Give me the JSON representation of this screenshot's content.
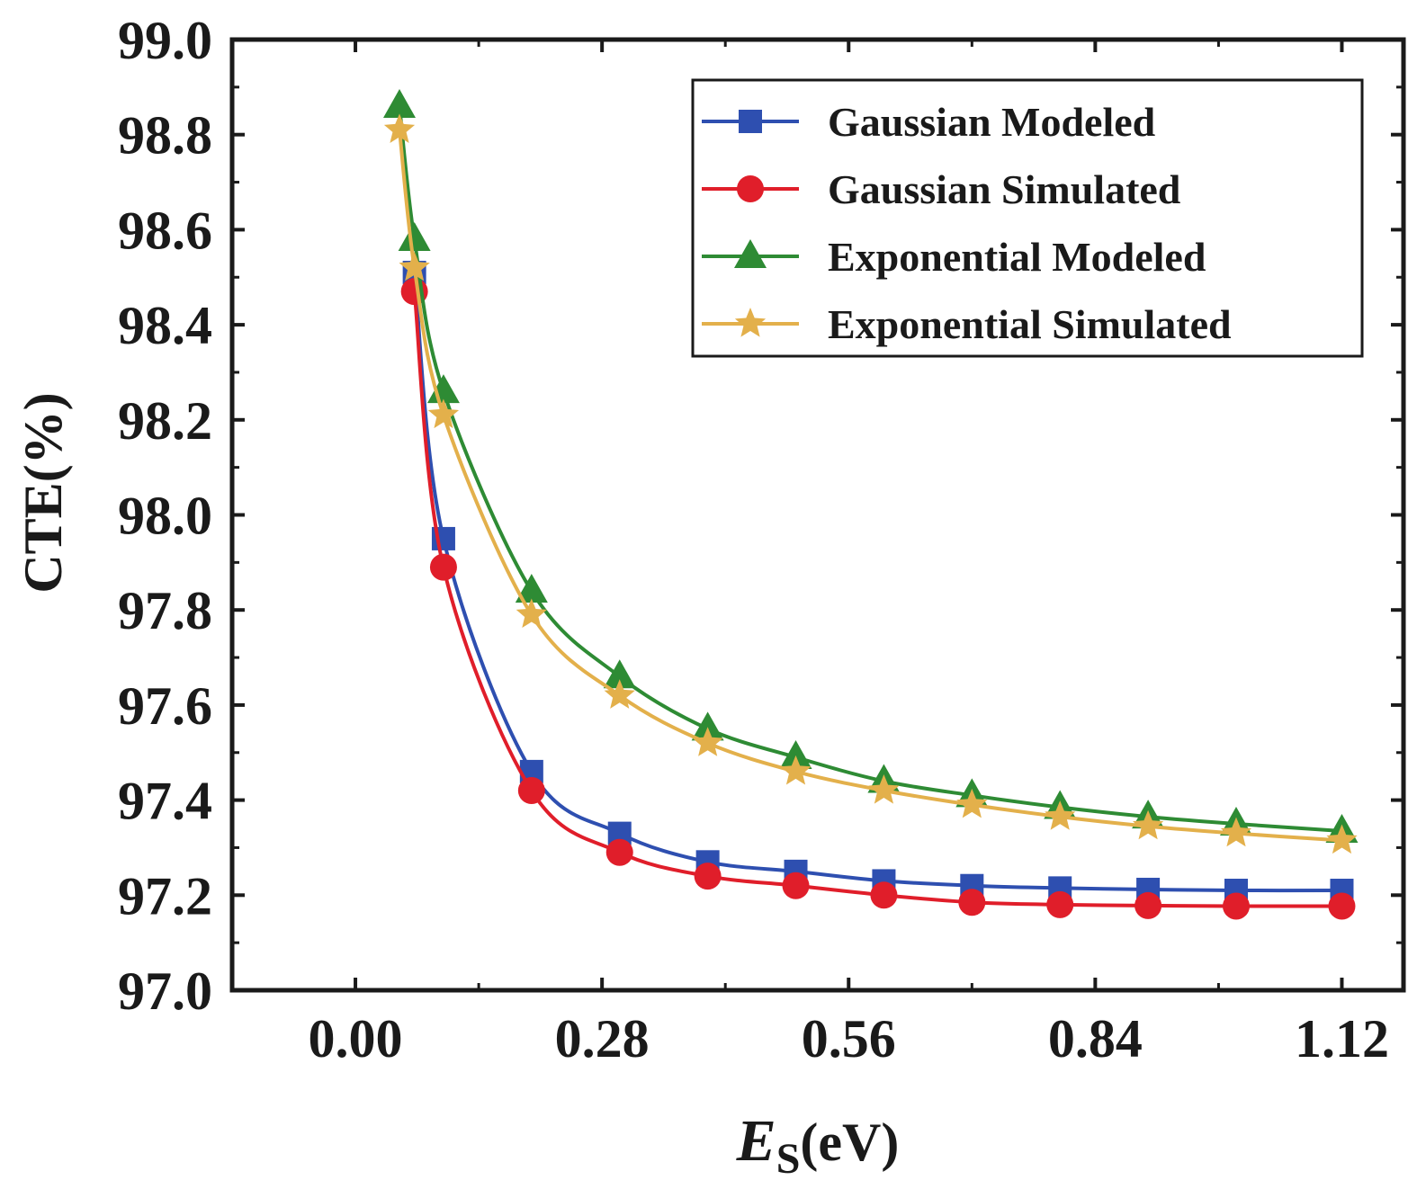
{
  "chart_data": {
    "type": "line",
    "xlabel_main": "E",
    "xlabel_sub": "S",
    "xlabel_unit": "(eV)",
    "ylabel": "CTE(%)",
    "xlim": [
      -0.14,
      1.19
    ],
    "ylim": [
      97.0,
      99.0
    ],
    "xticks": [
      0.0,
      0.28,
      0.56,
      0.84,
      1.12
    ],
    "xtick_labels": [
      "0.00",
      "0.28",
      "0.56",
      "0.84",
      "1.12"
    ],
    "yticks": [
      97.0,
      97.2,
      97.4,
      97.6,
      97.8,
      98.0,
      98.2,
      98.4,
      98.6,
      98.8,
      99.0
    ],
    "ytick_labels": [
      "97.0",
      "97.2",
      "97.4",
      "97.6",
      "97.8",
      "98.0",
      "98.2",
      "98.4",
      "98.6",
      "98.8",
      "99.0"
    ],
    "legend_position": "top-right",
    "series": [
      {
        "name": "Gaussian Modeled",
        "color": "#2e4fb0",
        "marker": "square",
        "x": [
          0.067,
          0.1,
          0.2,
          0.3,
          0.4,
          0.5,
          0.6,
          0.7,
          0.8,
          0.9,
          1.0,
          1.12
        ],
        "y": [
          98.51,
          97.95,
          97.46,
          97.33,
          97.27,
          97.25,
          97.23,
          97.22,
          97.215,
          97.212,
          97.21,
          97.21
        ]
      },
      {
        "name": "Gaussian Simulated",
        "color": "#e01e2a",
        "marker": "circle",
        "x": [
          0.067,
          0.1,
          0.2,
          0.3,
          0.4,
          0.5,
          0.6,
          0.7,
          0.8,
          0.9,
          1.0,
          1.12
        ],
        "y": [
          98.47,
          97.89,
          97.42,
          97.29,
          97.24,
          97.22,
          97.2,
          97.185,
          97.18,
          97.178,
          97.177,
          97.177
        ]
      },
      {
        "name": "Exponential Modeled",
        "color": "#2e8b34",
        "marker": "triangle",
        "x": [
          0.05,
          0.067,
          0.1,
          0.2,
          0.3,
          0.4,
          0.5,
          0.6,
          0.7,
          0.8,
          0.9,
          1.0,
          1.12
        ],
        "y": [
          98.86,
          98.58,
          98.26,
          97.84,
          97.66,
          97.55,
          97.49,
          97.44,
          97.41,
          97.385,
          97.365,
          97.35,
          97.335
        ]
      },
      {
        "name": "Exponential Simulated",
        "color": "#e3b04b",
        "marker": "star",
        "x": [
          0.05,
          0.067,
          0.1,
          0.2,
          0.3,
          0.4,
          0.5,
          0.6,
          0.7,
          0.8,
          0.9,
          1.0,
          1.12
        ],
        "y": [
          98.81,
          98.52,
          98.21,
          97.79,
          97.62,
          97.52,
          97.46,
          97.42,
          97.39,
          97.365,
          97.345,
          97.33,
          97.315
        ]
      }
    ]
  }
}
